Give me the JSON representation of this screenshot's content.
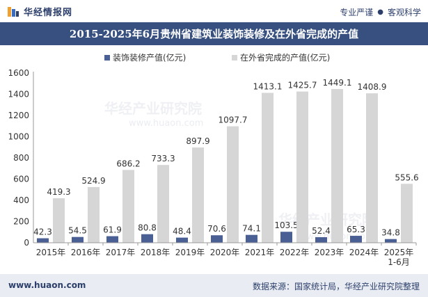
{
  "header": {
    "brand_name": "华经情报网",
    "slogan_left": "专业严谨",
    "slogan_right": "客观科学"
  },
  "footer": {
    "website": "www.huaon.com",
    "source": "数据来源：国家统计局，华经产业研究院整理"
  },
  "watermark": {
    "text": "华经产业研究院",
    "url": "www.huaon.com"
  },
  "colors": {
    "series_1": "#4a5f94",
    "series_2": "#d6d6d6",
    "title_bar": "#37507f"
  },
  "chart_data": {
    "type": "bar",
    "title": "2015-2025年6月贵州省建筑业装饰装修及在外省完成的产值",
    "categories": [
      "2015年",
      "2016年",
      "2017年",
      "2018年",
      "2019年",
      "2020年",
      "2021年",
      "2022年",
      "2023年",
      "2024年",
      "2025年\n1-6月"
    ],
    "series": [
      {
        "name": "装饰装修产值(亿元)",
        "values": [
          42.3,
          54.5,
          61.9,
          80.8,
          48.4,
          70.6,
          74.1,
          103.5,
          52.4,
          65.3,
          34.8
        ]
      },
      {
        "name": "在外省完成的产值(亿元)",
        "values": [
          419.3,
          524.9,
          686.2,
          733.3,
          897.9,
          1097.7,
          1413.1,
          1425.7,
          1449.1,
          1408.9,
          555.6
        ]
      }
    ],
    "yticks": [
      0,
      200,
      400,
      600,
      800,
      1000,
      1200,
      1400,
      1600
    ],
    "ylim": [
      0,
      1600
    ],
    "legend": "top-center",
    "grid": false
  }
}
